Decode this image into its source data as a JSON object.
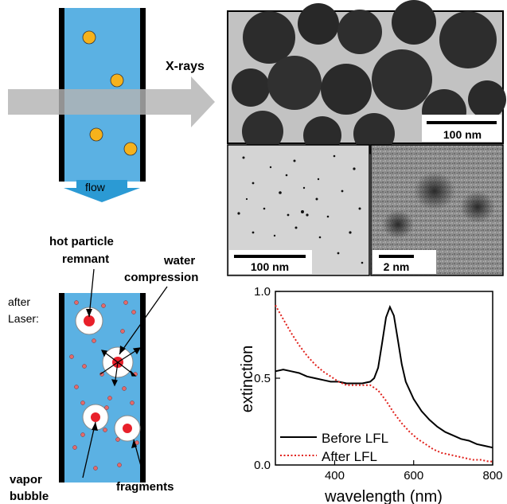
{
  "top_schematic": {
    "xray_label": "X-rays",
    "flow_label": "flow"
  },
  "tem_images": {
    "large_scalebar": "100 nm",
    "small_left_scalebar": "100 nm",
    "small_right_scalebar": "2 nm"
  },
  "bottom_schematic": {
    "after_label_line1": "after",
    "after_label_line2": "Laser:",
    "hot_label_line1": "hot particle",
    "hot_label_line2": "remnant",
    "water_label_line1": "water",
    "water_label_line2": "compression",
    "vapor_label_line1": "vapor",
    "vapor_label_line2": "bubble",
    "fragments_label": "fragments"
  },
  "colors": {
    "liquid": "#5bb1e3",
    "particle": "#f6b21c",
    "arrow": "#b3b3b3",
    "flow_arrow": "#2b9ad4",
    "core": "#e8202a",
    "fragment": "#e36b6b",
    "before": "#000000",
    "after": "#e0201b"
  },
  "chart_data": {
    "type": "line",
    "xlabel": "wavelength (nm)",
    "ylabel": "extinction",
    "xlim": [
      250,
      800
    ],
    "ylim": [
      0,
      1.0
    ],
    "xticks": [
      "400",
      "600",
      "800"
    ],
    "yticks": [
      "0.0",
      "0.5",
      "1.0"
    ],
    "legend_position": "bottom-left",
    "series": [
      {
        "name": "Before LFL",
        "style": "solid",
        "x": [
          250,
          270,
          290,
          310,
          330,
          350,
          370,
          390,
          410,
          430,
          450,
          470,
          490,
          500,
          510,
          520,
          530,
          540,
          550,
          560,
          570,
          580,
          600,
          620,
          640,
          660,
          680,
          700,
          720,
          740,
          760,
          780,
          800
        ],
        "values": [
          0.54,
          0.55,
          0.54,
          0.53,
          0.51,
          0.5,
          0.49,
          0.48,
          0.48,
          0.47,
          0.47,
          0.47,
          0.48,
          0.5,
          0.56,
          0.7,
          0.85,
          0.91,
          0.86,
          0.72,
          0.58,
          0.48,
          0.38,
          0.31,
          0.26,
          0.22,
          0.19,
          0.17,
          0.15,
          0.14,
          0.12,
          0.11,
          0.1
        ]
      },
      {
        "name": "After LFL",
        "style": "dotted",
        "x": [
          250,
          270,
          290,
          310,
          330,
          350,
          370,
          390,
          410,
          430,
          450,
          470,
          490,
          510,
          530,
          550,
          570,
          590,
          610,
          630,
          650,
          670,
          690,
          710,
          730,
          750,
          770,
          790,
          800
        ],
        "values": [
          0.92,
          0.84,
          0.76,
          0.69,
          0.63,
          0.58,
          0.54,
          0.51,
          0.48,
          0.46,
          0.46,
          0.46,
          0.46,
          0.43,
          0.37,
          0.3,
          0.24,
          0.19,
          0.15,
          0.12,
          0.09,
          0.07,
          0.06,
          0.05,
          0.04,
          0.03,
          0.03,
          0.02,
          0.02
        ]
      }
    ]
  }
}
